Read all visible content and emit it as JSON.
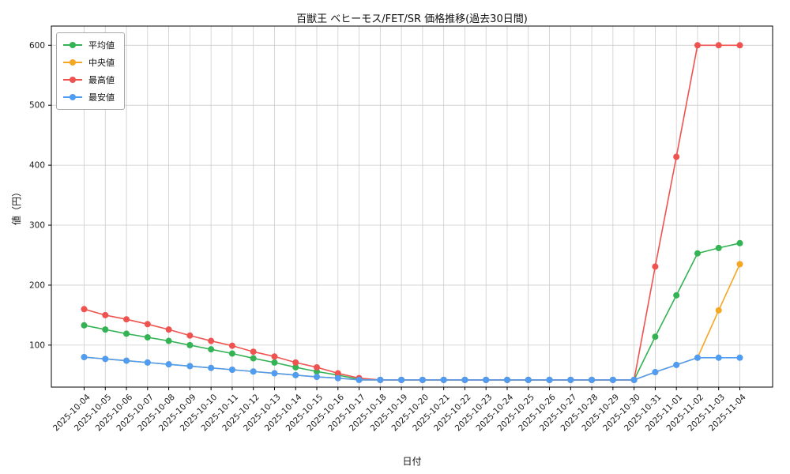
{
  "chart_data": {
    "type": "line",
    "title": "百獣王 ベヒーモス/FET/SR 価格推移(過去30日間)",
    "xlabel": "日付",
    "ylabel": "値（円）",
    "grid": true,
    "legend_position": "upper-left",
    "yticks": [
      100,
      200,
      300,
      400,
      500,
      600
    ],
    "ylim": [
      30,
      632
    ],
    "x": [
      "2025-10-04",
      "2025-10-05",
      "2025-10-06",
      "2025-10-07",
      "2025-10-08",
      "2025-10-09",
      "2025-10-10",
      "2025-10-11",
      "2025-10-12",
      "2025-10-13",
      "2025-10-14",
      "2025-10-15",
      "2025-10-16",
      "2025-10-17",
      "2025-10-18",
      "2025-10-19",
      "2025-10-20",
      "2025-10-21",
      "2025-10-22",
      "2025-10-23",
      "2025-10-24",
      "2025-10-25",
      "2025-10-26",
      "2025-10-27",
      "2025-10-28",
      "2025-10-29",
      "2025-10-30",
      "2025-10-31",
      "2025-11-01",
      "2025-11-02",
      "2025-11-03",
      "2025-11-04"
    ],
    "series": [
      {
        "name": "平均値",
        "color": "#34b354",
        "values": [
          133,
          126,
          119,
          113,
          107,
          100,
          93,
          86,
          78,
          71,
          63,
          56,
          50,
          43,
          42,
          42,
          42,
          42,
          42,
          42,
          42,
          42,
          42,
          42,
          42,
          42,
          42,
          114,
          183,
          253,
          262,
          270
        ]
      },
      {
        "name": "中央値",
        "color": "#f5a623",
        "values": [
          80,
          77,
          74,
          71,
          68,
          65,
          62,
          59,
          56,
          53,
          50,
          47,
          45,
          42,
          42,
          42,
          42,
          42,
          42,
          42,
          42,
          42,
          42,
          42,
          42,
          42,
          42,
          55,
          67,
          79,
          158,
          235
        ]
      },
      {
        "name": "最高値",
        "color": "#ef5350",
        "values": [
          160,
          150,
          143,
          135,
          126,
          116,
          107,
          99,
          89,
          81,
          71,
          63,
          53,
          45,
          42,
          42,
          42,
          42,
          42,
          42,
          42,
          42,
          42,
          42,
          42,
          42,
          42,
          231,
          414,
          600,
          600,
          600
        ]
      },
      {
        "name": "最安値",
        "color": "#4f9df3",
        "values": [
          80,
          77,
          74,
          71,
          68,
          65,
          62,
          59,
          56,
          53,
          50,
          47,
          45,
          42,
          42,
          42,
          42,
          42,
          42,
          42,
          42,
          42,
          42,
          42,
          42,
          42,
          42,
          55,
          67,
          79,
          79,
          79
        ]
      }
    ],
    "colors": {
      "grid": "#cccccc",
      "axis": "#000000",
      "text": "#1a1a1a"
    }
  }
}
